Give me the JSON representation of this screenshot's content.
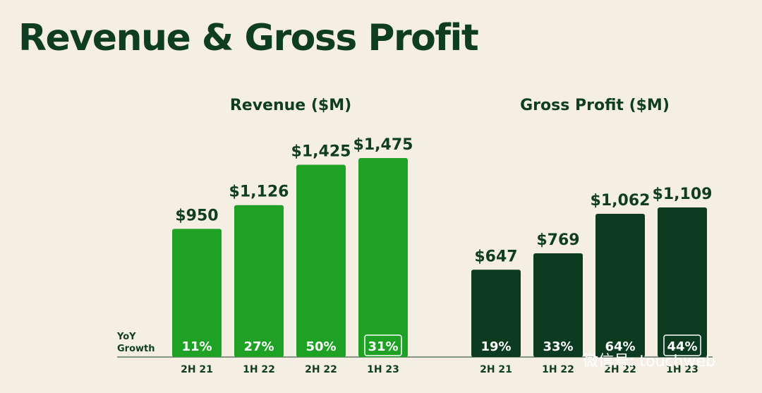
{
  "page_title": "Revenue & Gross Profit",
  "yoy_label_line1": "YoY",
  "yoy_label_line2": "Growth",
  "watermark_text": "微信号: touchweb",
  "chart_data": [
    {
      "type": "bar",
      "title": "Revenue ($M)",
      "categories": [
        "2H 21",
        "1H 22",
        "2H 22",
        "1H 23"
      ],
      "values": [
        950,
        1126,
        1425,
        1475
      ],
      "value_labels": [
        "$950",
        "$1,126",
        "$1,425",
        "$1,475"
      ],
      "growth": [
        "11%",
        "27%",
        "50%",
        "31%"
      ],
      "highlight_index": 3,
      "ylim": [
        0,
        1600
      ],
      "bar_color": "#1fa125",
      "grid": false
    },
    {
      "type": "bar",
      "title": "Gross Profit ($M)",
      "categories": [
        "2H 21",
        "1H 22",
        "2H 22",
        "1H 23"
      ],
      "values": [
        647,
        769,
        1062,
        1109
      ],
      "value_labels": [
        "$647",
        "$769",
        "$1,062",
        "$1,109"
      ],
      "growth": [
        "19%",
        "33%",
        "64%",
        "44%"
      ],
      "highlight_index": 3,
      "ylim": [
        0,
        1600
      ],
      "bar_color": "#0d3b20",
      "grid": false
    }
  ]
}
